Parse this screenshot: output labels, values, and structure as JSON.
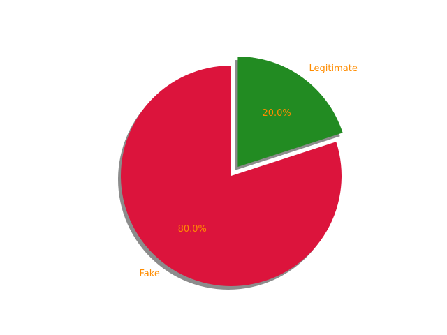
{
  "chart_data": {
    "type": "pie",
    "title": "",
    "slices": [
      {
        "label": "Fake",
        "value": 80.0,
        "pct_text": "80.0%",
        "color": "#DC143C",
        "exploded": false
      },
      {
        "label": "Legitimate",
        "value": 20.0,
        "pct_text": "20.0%",
        "color": "#228B22",
        "exploded": true
      }
    ],
    "label_color": "#FF8C00",
    "shadow": true,
    "start_angle": 90
  }
}
